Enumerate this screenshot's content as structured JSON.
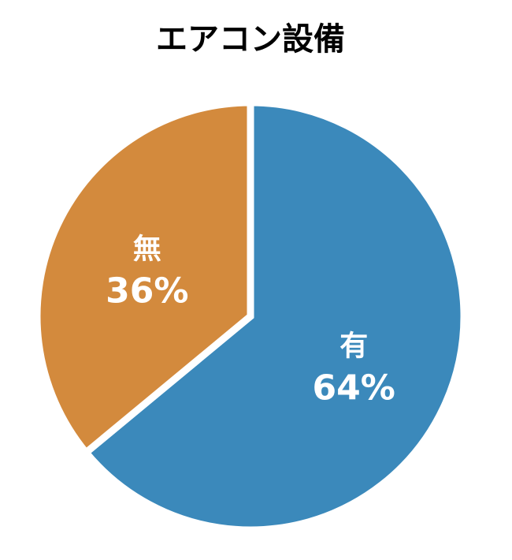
{
  "chart_data": {
    "type": "pie",
    "title": "エアコン設備",
    "categories": [
      "有",
      "無"
    ],
    "values": [
      64,
      36
    ],
    "value_labels": [
      "64%",
      "36%"
    ],
    "colors": [
      "#3b89bb",
      "#d38a3d"
    ]
  }
}
